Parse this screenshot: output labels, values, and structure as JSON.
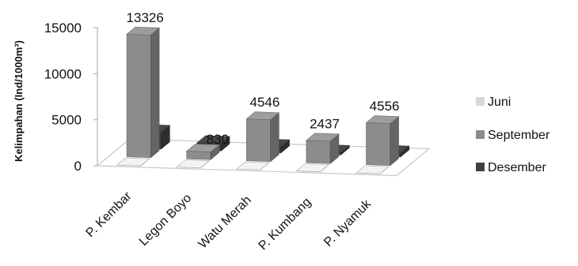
{
  "chart_data": {
    "type": "bar",
    "title": "",
    "xlabel": "",
    "ylabel": "Kelimpahan (Ind/1000m³)",
    "ylim": [
      0,
      15000
    ],
    "yticks": [
      0,
      5000,
      10000,
      15000
    ],
    "categories": [
      "P. Kembar",
      "Legon Boyo",
      "Watu Merah",
      "P. Kumbang",
      "P. Nyamuk"
    ],
    "series": [
      {
        "name": "Juni",
        "values": [
          10,
          10,
          10,
          10,
          10
        ],
        "color": "#d9d9d9"
      },
      {
        "name": "September",
        "values": [
          13326,
          830,
          4546,
          2437,
          4556
        ],
        "color": "#8c8c8c"
      },
      {
        "name": "Desember",
        "values": [
          1800,
          800,
          650,
          250,
          400
        ],
        "color": "#404040"
      }
    ],
    "data_labels": {
      "series": "September",
      "texts": [
        "13326",
        "830",
        "4546",
        "2437",
        "4556"
      ]
    },
    "legend_position": "right",
    "grid": false,
    "style": "3d-clustered-column"
  }
}
